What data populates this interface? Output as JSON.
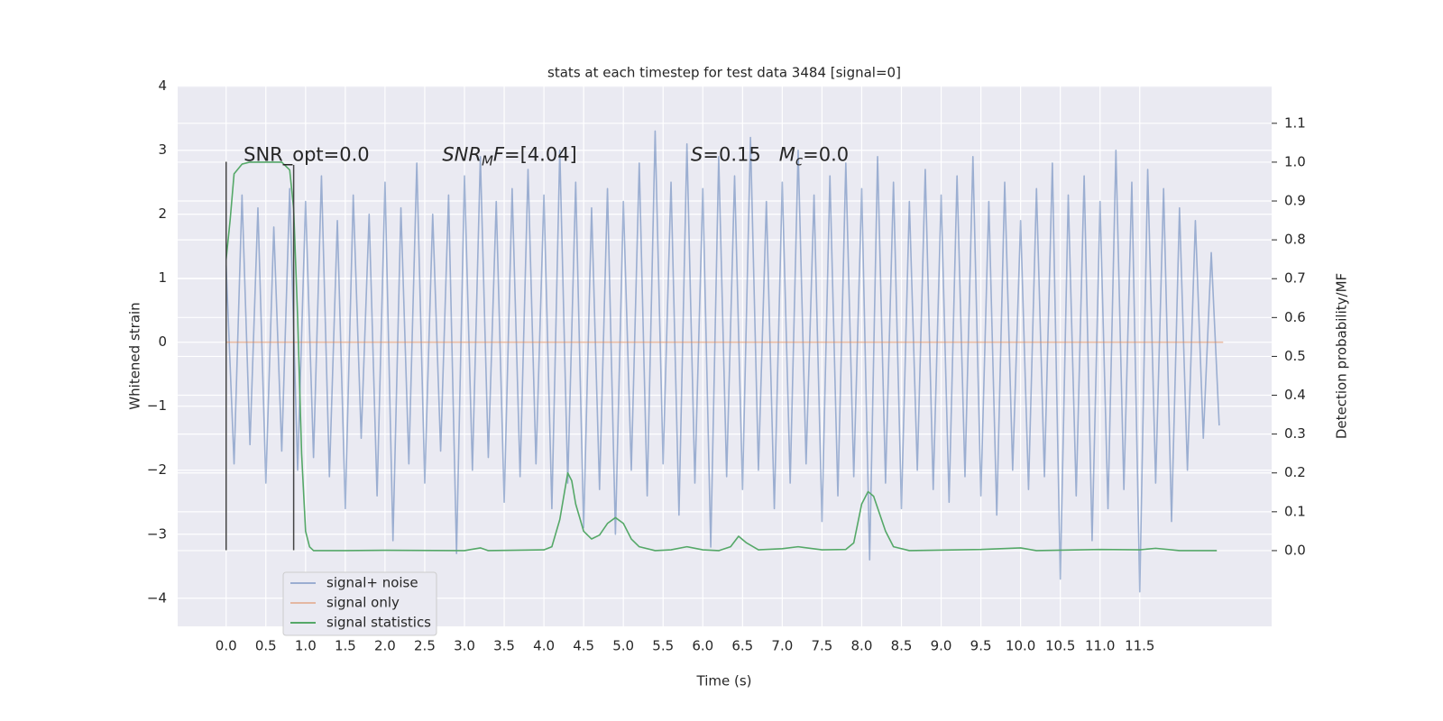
{
  "chart_data": {
    "type": "line",
    "title": "stats at each timestep for test data 3484 [signal=0]",
    "xlabel": "Time (s)",
    "ylabel": "Whitened strain",
    "y2label": "Detection probability/MF",
    "xlim": [
      -0.61,
      13.16
    ],
    "ylim": [
      -4.44,
      4.01
    ],
    "y2lim": [
      -0.195,
      1.197
    ],
    "xticks": [
      {
        "value": 0,
        "label": "0.0"
      },
      0.5,
      {
        "value": 1,
        "label": "1.0"
      },
      1.5,
      {
        "value": 2,
        "label": "2.0"
      },
      2.5,
      {
        "value": 3,
        "label": "3.0"
      },
      3.5,
      {
        "value": 4,
        "label": "4.0"
      },
      4.5,
      {
        "value": 5,
        "label": "5.0"
      },
      5.5,
      {
        "value": 6,
        "label": "6.0"
      },
      6.5,
      {
        "value": 7,
        "label": "7.0"
      },
      7.5,
      {
        "value": 8,
        "label": "8.0"
      },
      8.5,
      {
        "value": 9,
        "label": "9.0"
      },
      9.5,
      {
        "value": 10,
        "label": "10.0"
      },
      10.5,
      {
        "value": 11,
        "label": "11.0"
      },
      11.5
    ],
    "yticks": [
      {
        "value": -4,
        "label": "−4"
      },
      {
        "value": -3,
        "label": "−3"
      },
      {
        "value": -2,
        "label": "−2"
      },
      {
        "value": -1,
        "label": "−1"
      },
      0,
      1,
      2,
      3,
      4
    ],
    "y2ticks": [
      {
        "value": 0,
        "label": "0.0"
      },
      0.1,
      0.2,
      0.3,
      0.4,
      0.5,
      0.6,
      0.7,
      0.8,
      0.9,
      {
        "value": 1,
        "label": "1.0"
      },
      1.1
    ],
    "grid": true,
    "legend": "lower left",
    "series": [
      {
        "name": "signal+ noise",
        "color": "#4c72b0",
        "opacity": 0.5,
        "axis": "y",
        "x": [
          0.0,
          0.1,
          0.2,
          0.3,
          0.4,
          0.5,
          0.6,
          0.7,
          0.8,
          0.9,
          1.0,
          1.1,
          1.2,
          1.3,
          1.4,
          1.5,
          1.6,
          1.7,
          1.8,
          1.9,
          2.0,
          2.1,
          2.2,
          2.3,
          2.4,
          2.5,
          2.6,
          2.7,
          2.8,
          2.9,
          3.0,
          3.1,
          3.2,
          3.3,
          3.4,
          3.5,
          3.6,
          3.7,
          3.8,
          3.9,
          4.0,
          4.1,
          4.2,
          4.3,
          4.4,
          4.5,
          4.6,
          4.7,
          4.8,
          4.9,
          5.0,
          5.1,
          5.2,
          5.3,
          5.4,
          5.5,
          5.6,
          5.7,
          5.8,
          5.9,
          6.0,
          6.1,
          6.2,
          6.3,
          6.4,
          6.5,
          6.6,
          6.7,
          6.8,
          6.9,
          7.0,
          7.1,
          7.2,
          7.3,
          7.4,
          7.5,
          7.6,
          7.7,
          7.8,
          7.9,
          8.0,
          8.1,
          8.2,
          8.3,
          8.4,
          8.5,
          8.6,
          8.7,
          8.8,
          8.9,
          9.0,
          9.1,
          9.2,
          9.3,
          9.4,
          9.5,
          9.6,
          9.7,
          9.8,
          9.9,
          10.0,
          10.1,
          10.2,
          10.3,
          10.4,
          10.5,
          10.6,
          10.7,
          10.8,
          10.9,
          11.0,
          11.1,
          11.2,
          11.3,
          11.4,
          11.5,
          11.6,
          11.7,
          11.8,
          11.9,
          12.0,
          12.1,
          12.2,
          12.3,
          12.4,
          12.5
        ],
        "values": [
          1.2,
          -1.9,
          2.3,
          -1.6,
          2.1,
          -2.2,
          1.8,
          -1.7,
          2.4,
          -2.0,
          2.2,
          -1.8,
          2.6,
          -2.1,
          1.9,
          -2.6,
          2.3,
          -1.5,
          2.0,
          -2.4,
          2.5,
          -3.1,
          2.1,
          -1.9,
          2.8,
          -2.2,
          2.0,
          -1.7,
          2.3,
          -3.3,
          2.6,
          -2.0,
          2.9,
          -1.8,
          2.2,
          -2.5,
          2.4,
          -2.1,
          2.7,
          -1.9,
          2.3,
          -2.6,
          3.0,
          -2.2,
          2.5,
          -2.9,
          2.1,
          -2.3,
          2.4,
          -3.0,
          2.2,
          -2.0,
          2.8,
          -2.4,
          3.3,
          -1.9,
          2.5,
          -2.7,
          3.1,
          -2.2,
          2.4,
          -3.2,
          2.9,
          -2.1,
          2.6,
          -2.3,
          3.2,
          -2.0,
          2.2,
          -2.6,
          2.5,
          -2.2,
          3.0,
          -1.9,
          2.3,
          -2.8,
          2.6,
          -2.4,
          2.8,
          -2.1,
          2.4,
          -3.4,
          2.9,
          -2.2,
          2.5,
          -2.6,
          2.2,
          -2.0,
          2.7,
          -2.3,
          2.3,
          -2.5,
          2.6,
          -2.1,
          2.9,
          -2.4,
          2.2,
          -2.7,
          2.5,
          -2.0,
          1.9,
          -2.3,
          2.4,
          -2.1,
          2.8,
          -3.7,
          2.3,
          -2.4,
          2.6,
          -3.1,
          2.2,
          -2.6,
          3.0,
          -2.3,
          2.5,
          -3.9,
          2.7,
          -2.2,
          2.4,
          -2.8,
          2.1,
          -2.0,
          1.9,
          -1.5,
          1.4,
          -1.3
        ]
      },
      {
        "name": "signal only",
        "color": "#dd8452",
        "opacity": 0.5,
        "axis": "y",
        "x": [
          0.0,
          12.55
        ],
        "values": [
          0,
          0
        ]
      },
      {
        "name": "signal statistics",
        "color": "#55a868",
        "opacity": 1,
        "axis": "y2",
        "x": [
          0.0,
          0.05,
          0.1,
          0.2,
          0.3,
          0.5,
          0.7,
          0.8,
          0.85,
          0.9,
          0.95,
          1.0,
          1.05,
          1.1,
          1.5,
          2.0,
          3.0,
          3.2,
          3.3,
          4.0,
          4.1,
          4.2,
          4.3,
          4.35,
          4.4,
          4.5,
          4.6,
          4.7,
          4.8,
          4.9,
          5.0,
          5.1,
          5.2,
          5.4,
          5.6,
          5.8,
          6.0,
          6.2,
          6.35,
          6.45,
          6.55,
          6.7,
          7.0,
          7.2,
          7.5,
          7.8,
          7.9,
          8.0,
          8.08,
          8.15,
          8.3,
          8.4,
          8.6,
          9.5,
          10.0,
          10.2,
          11.0,
          11.5,
          11.7,
          12.0,
          12.47
        ],
        "values": [
          0.75,
          0.85,
          0.97,
          0.995,
          1.0,
          1.0,
          1.0,
          0.98,
          0.88,
          0.6,
          0.25,
          0.05,
          0.01,
          0.0,
          0.0,
          0.001,
          0.0,
          0.007,
          0.0,
          0.002,
          0.01,
          0.08,
          0.2,
          0.18,
          0.12,
          0.05,
          0.03,
          0.04,
          0.07,
          0.085,
          0.07,
          0.03,
          0.01,
          0.0,
          0.002,
          0.01,
          0.002,
          0.0,
          0.01,
          0.037,
          0.02,
          0.002,
          0.005,
          0.01,
          0.002,
          0.003,
          0.02,
          0.12,
          0.152,
          0.14,
          0.05,
          0.01,
          0.0,
          0.003,
          0.007,
          0.0,
          0.003,
          0.002,
          0.006,
          0.0,
          0.0
        ]
      }
    ],
    "vlines": [
      {
        "x": 0,
        "ymin": -3.25,
        "ymax": 2.82,
        "color": "#444444"
      },
      {
        "x": 0.85,
        "ymin": -3.25,
        "ymax": 2.77,
        "color": "#444444"
      }
    ],
    "annotations": [
      {
        "x": 0.22,
        "y": 2.92,
        "parts": [
          {
            "text": "SNR_opt=0.0",
            "style": "normal"
          }
        ]
      },
      {
        "x": 2.72,
        "y": 2.92,
        "parts": [
          {
            "text": "SNR",
            "style": "italic"
          },
          {
            "text": "M",
            "style": "italic-sub"
          },
          {
            "text": "F",
            "style": "italic"
          },
          {
            "text": "=[4.04]",
            "style": "normal"
          }
        ]
      },
      {
        "x": 5.85,
        "y": 2.92,
        "parts": [
          {
            "text": "S",
            "style": "italic"
          },
          {
            "text": "=0.15   ",
            "style": "normal"
          },
          {
            "text": "M",
            "style": "italic"
          },
          {
            "text": "c",
            "style": "italic-sub"
          },
          {
            "text": "=0.0",
            "style": "normal"
          }
        ]
      }
    ]
  }
}
